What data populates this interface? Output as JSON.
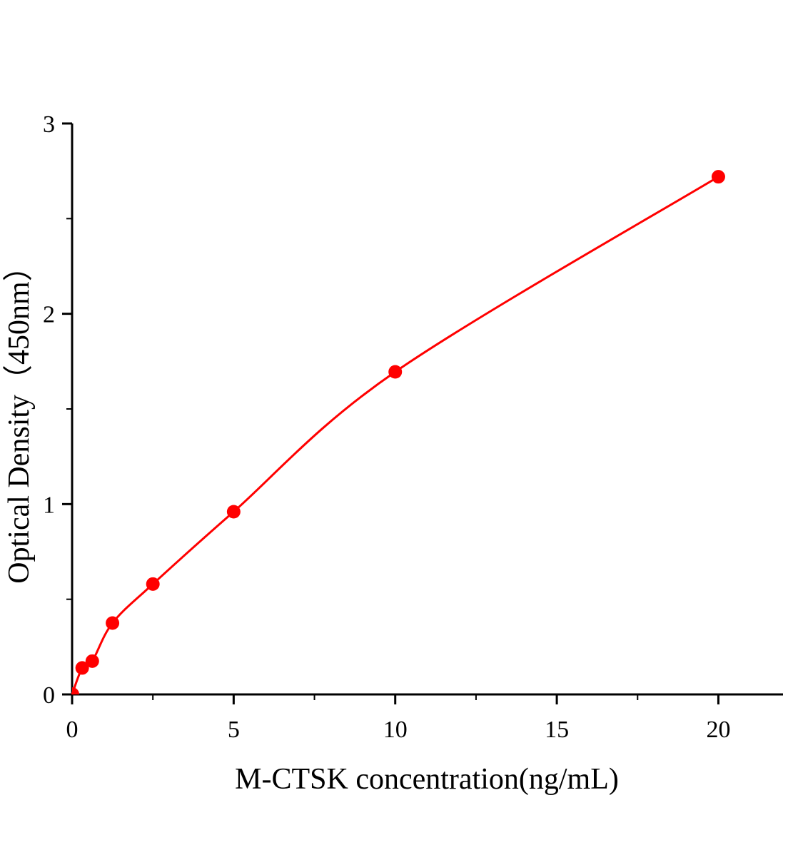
{
  "chart_data": {
    "type": "scatter",
    "title": "",
    "xlabel": "M-CTSK concentration(ng/mL)",
    "ylabel": "Optical Density（450nm）",
    "xlim": [
      0,
      22
    ],
    "ylim": [
      0,
      3
    ],
    "xticks": [
      0,
      5,
      10,
      15,
      20
    ],
    "yticks": [
      0,
      1,
      2,
      3
    ],
    "grid": false,
    "legend": "none",
    "color": "#ff0000",
    "series": [
      {
        "x": [
          0,
          0.3125,
          0.625,
          1.25,
          2.5,
          5,
          10,
          20
        ],
        "y": [
          0.0,
          0.139,
          0.175,
          0.375,
          0.58,
          0.96,
          1.695,
          2.72
        ],
        "fit_line": true
      }
    ]
  }
}
